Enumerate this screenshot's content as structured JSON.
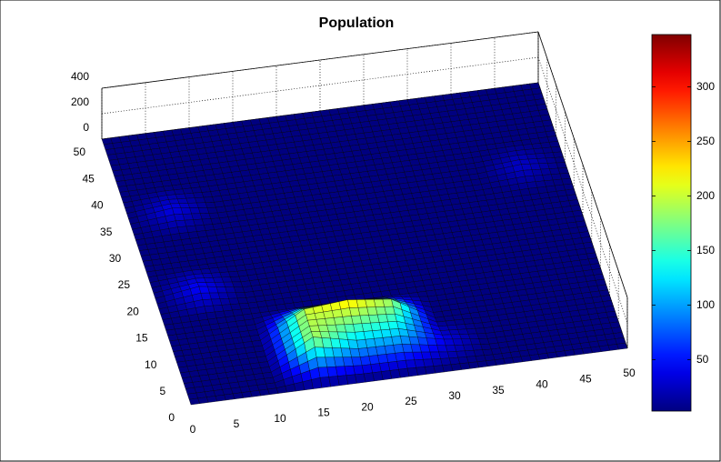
{
  "chart_data": {
    "type": "surface",
    "title": "Population",
    "x": [
      0,
      5,
      10,
      15,
      20,
      25,
      30,
      35,
      40,
      45,
      50
    ],
    "y": [
      0,
      5,
      10,
      15,
      20,
      25,
      30,
      35,
      40,
      45,
      50
    ],
    "z": [
      [
        0,
        0,
        0,
        0,
        0,
        0,
        0,
        0,
        0,
        0,
        0
      ],
      [
        0,
        0,
        0,
        190,
        120,
        110,
        40,
        0,
        0,
        0,
        0
      ],
      [
        0,
        0,
        0,
        200,
        230,
        190,
        0,
        0,
        0,
        0,
        0
      ],
      [
        0,
        0,
        0,
        0,
        0,
        0,
        0,
        0,
        0,
        0,
        0
      ],
      [
        0,
        50,
        0,
        0,
        0,
        0,
        0,
        0,
        0,
        0,
        0
      ],
      [
        0,
        0,
        0,
        0,
        0,
        0,
        0,
        0,
        0,
        0,
        0
      ],
      [
        0,
        0,
        0,
        0,
        0,
        0,
        0,
        0,
        0,
        0,
        0
      ],
      [
        0,
        40,
        0,
        0,
        0,
        0,
        0,
        0,
        0,
        30,
        0
      ],
      [
        0,
        0,
        0,
        0,
        0,
        0,
        0,
        0,
        0,
        0,
        0
      ],
      [
        0,
        0,
        0,
        0,
        0,
        0,
        0,
        0,
        0,
        0,
        0
      ],
      [
        0,
        0,
        0,
        0,
        0,
        0,
        0,
        0,
        0,
        0,
        0
      ]
    ],
    "xlim": [
      0,
      50
    ],
    "ylim": [
      0,
      50
    ],
    "zlim": [
      0,
      400
    ],
    "xticks": [
      0,
      5,
      10,
      15,
      20,
      25,
      30,
      35,
      40,
      45,
      50
    ],
    "yticks": [
      0,
      5,
      10,
      15,
      20,
      25,
      30,
      35,
      40,
      45,
      50
    ],
    "zticks": [
      0,
      200,
      400
    ],
    "colormap": "jet",
    "clim": [
      3,
      348
    ],
    "colorbar_ticks": [
      50,
      100,
      150,
      200,
      250,
      300
    ],
    "grid": true
  }
}
